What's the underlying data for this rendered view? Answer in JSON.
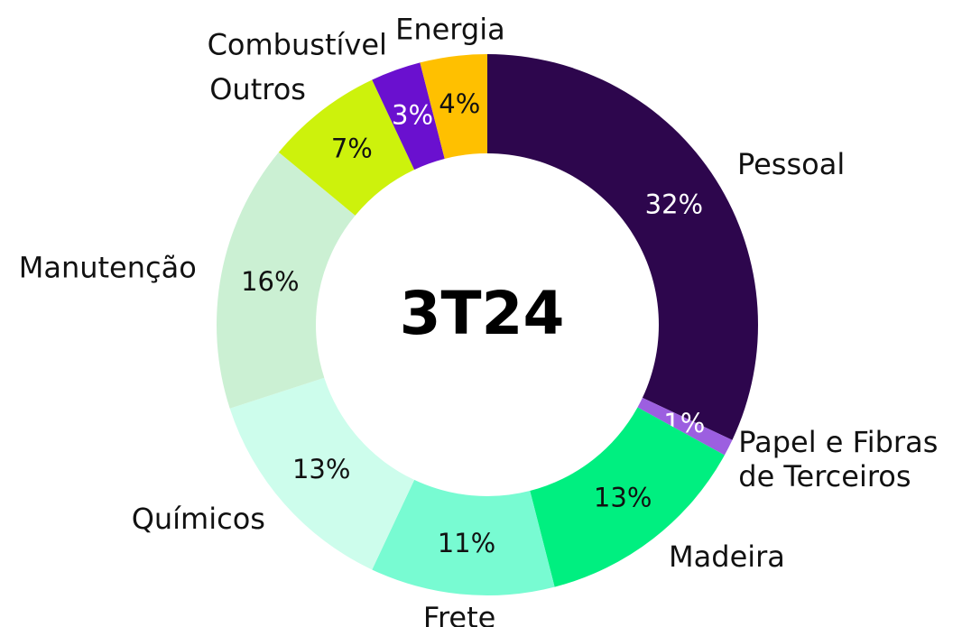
{
  "chart_data": {
    "type": "donut",
    "title": "3T24",
    "categories": [
      "Pessoal",
      "Papel e Fibras de Terceiros",
      "Madeira",
      "Frete",
      "Químicos",
      "Manutenção",
      "Outros",
      "Combustível",
      "Energia"
    ],
    "values": [
      32,
      1,
      13,
      11,
      13,
      16,
      7,
      3,
      4
    ],
    "value_labels": [
      "32%",
      "1%",
      "13%",
      "11%",
      "13%",
      "16%",
      "7%",
      "3%",
      "4%"
    ],
    "colors": [
      "#2d064d",
      "#9c5fe0",
      "#00ef80",
      "#78fbd2",
      "#cdfdec",
      "#cbf0d3",
      "#cdf20c",
      "#6a10cf",
      "#ffc000"
    ],
    "label_colors": [
      "#ffffff",
      "#ffffff",
      "#111111",
      "#111111",
      "#111111",
      "#111111",
      "#111111",
      "#ffffff",
      "#111111"
    ]
  }
}
